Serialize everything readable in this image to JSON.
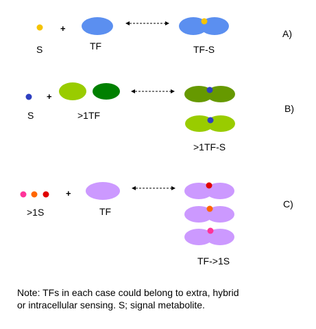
{
  "panels": {
    "a": {
      "letter": "A)",
      "signal_label": "S",
      "plus": "+",
      "tf_label": "TF",
      "complex_label": "TF-S"
    },
    "b": {
      "letter": "B)",
      "signal_label": "S",
      "plus": "+",
      "tf_label": ">1TF",
      "complex_label": ">1TF-S"
    },
    "c": {
      "letter": "C)",
      "signal_label": ">1S",
      "plus": "+",
      "tf_label": "TF",
      "complex_label": "TF->1S"
    }
  },
  "note": {
    "line1": "Note: TFs in each case could belong to extra, hybrid",
    "line2": "or intracellular sensing. S; signal metabolite."
  },
  "colors": {
    "tf_blue": "#5B8FF0",
    "signal_yellow": "#F5C300",
    "tf_light_green": "#99CC00",
    "tf_dark_green": "#008000",
    "tf_olive_green": "#669900",
    "signal_blue": "#2E3FC0",
    "tf_purple": "#CC99FF",
    "signal_pink": "#FF3399",
    "signal_orange": "#FF6600",
    "signal_red": "#E00000"
  }
}
